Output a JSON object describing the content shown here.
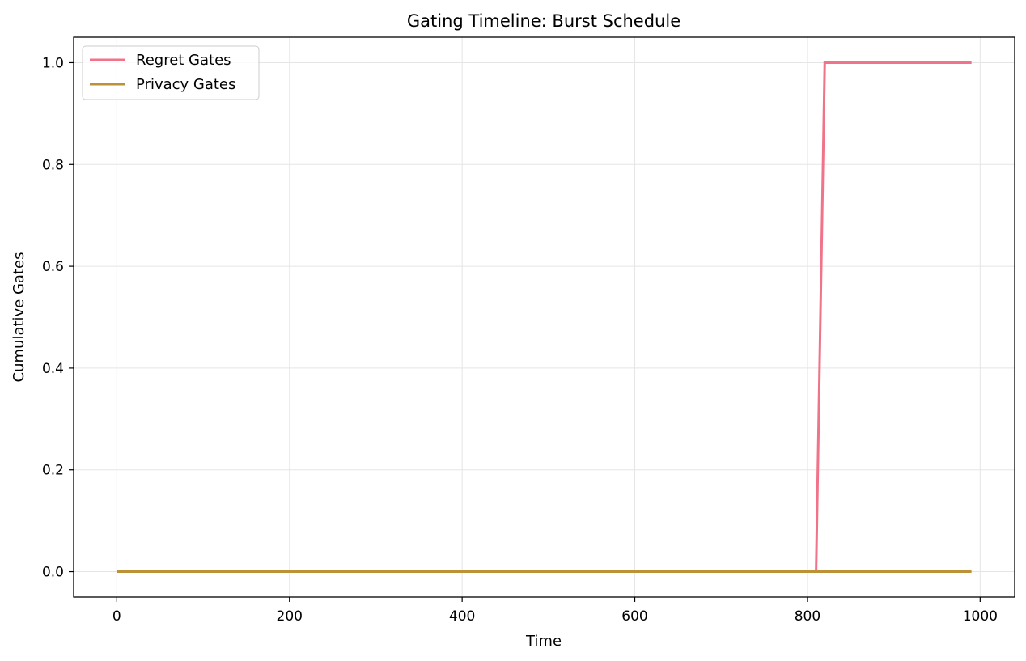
{
  "chart_data": {
    "type": "line",
    "title": "Gating Timeline: Burst Schedule",
    "xlabel": "Time",
    "ylabel": "Cumulative Gates",
    "xlim": [
      -50,
      1040
    ],
    "ylim": [
      -0.05,
      1.05
    ],
    "xticks": [
      0,
      200,
      400,
      600,
      800,
      1000
    ],
    "xtick_labels": [
      "0",
      "200",
      "400",
      "600",
      "800",
      "1000"
    ],
    "yticks": [
      0.0,
      0.2,
      0.4,
      0.6,
      0.8,
      1.0
    ],
    "ytick_labels": [
      "0.0",
      "0.2",
      "0.4",
      "0.6",
      "0.8",
      "1.0"
    ],
    "grid": true,
    "legend_position": "upper-left",
    "series": [
      {
        "name": "Regret Gates",
        "color": "#f0738a",
        "x": [
          0,
          810,
          820,
          990
        ],
        "y": [
          0,
          0,
          1,
          1
        ]
      },
      {
        "name": "Privacy Gates",
        "color": "#bd9236",
        "x": [
          0,
          990
        ],
        "y": [
          0,
          0
        ]
      }
    ]
  }
}
